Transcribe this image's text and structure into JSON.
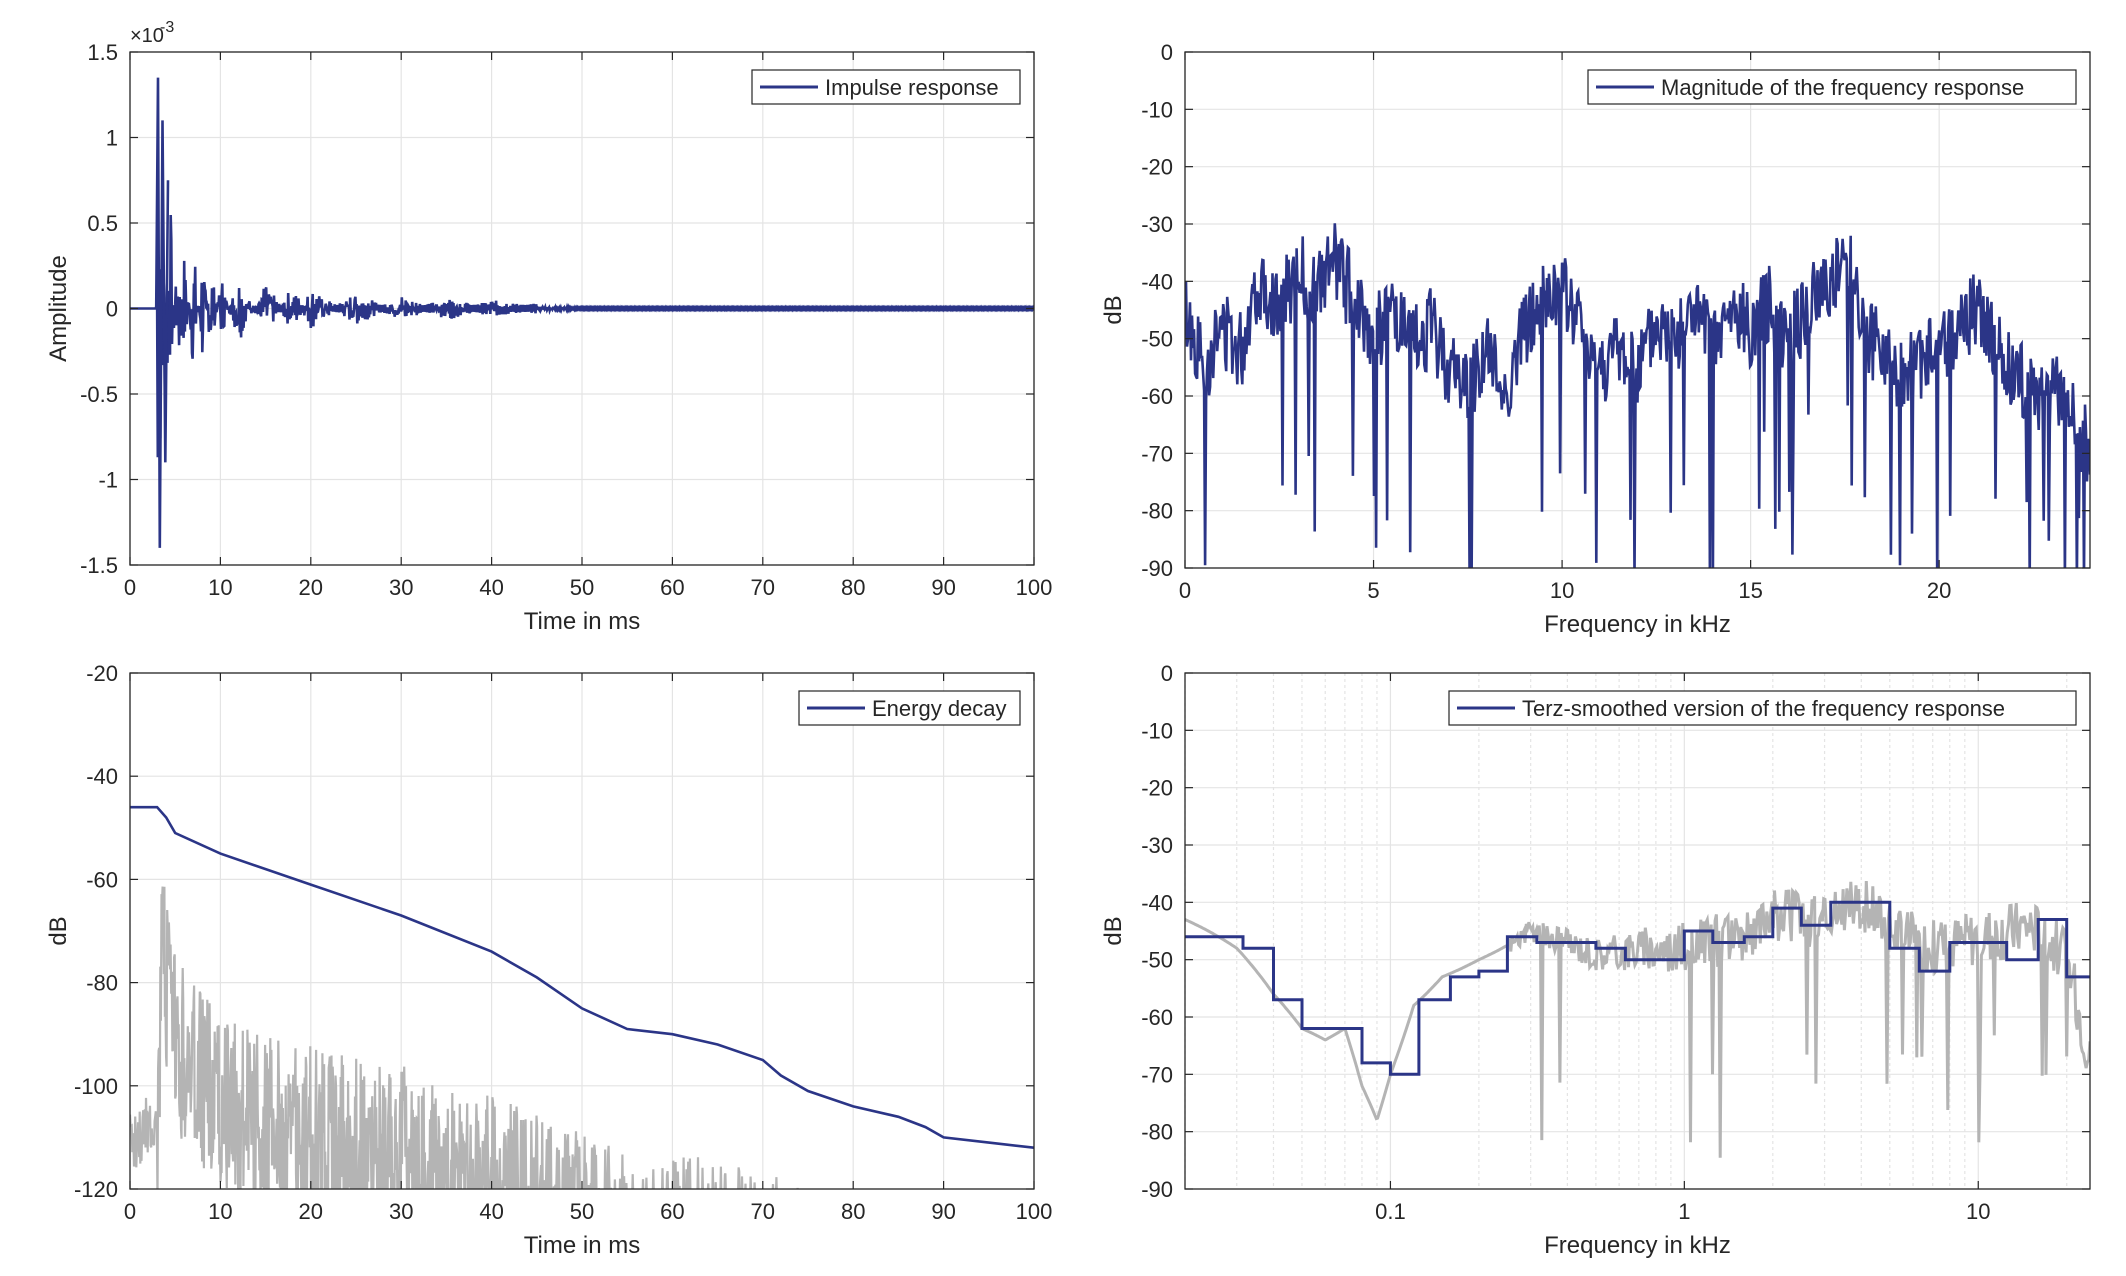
{
  "colors": {
    "series": "#2b3587",
    "gray": "#b4b4b4",
    "grid": "#e4e4e4",
    "axis": "#262626"
  },
  "chart_data": [
    {
      "id": "impulse",
      "type": "line",
      "xlabel": "Time in ms",
      "ylabel": "Amplitude",
      "xlim": [
        0,
        100
      ],
      "ylim": [
        -1.5,
        1.5
      ],
      "xticks": [
        "0",
        "10",
        "20",
        "30",
        "40",
        "50",
        "60",
        "70",
        "80",
        "90",
        "100"
      ],
      "yticks": [
        "-1.5",
        "-1",
        "-0.5",
        "0",
        "0.5",
        "1",
        "1.5"
      ],
      "exponent_label": "×10",
      "exponent_value": "-3",
      "legend": [
        "Impulse response"
      ],
      "legend_position": "top-right",
      "grid": true,
      "series": [
        {
          "name": "Impulse response",
          "x": [
            0,
            2.9,
            3.1,
            3.3,
            3.6,
            3.9,
            4.2,
            4.5,
            5,
            5.5,
            6,
            7,
            8,
            9,
            10,
            12,
            15,
            18,
            20,
            25,
            30,
            35,
            40,
            45,
            50,
            100
          ],
          "y": [
            0,
            0,
            1.35,
            -1.4,
            1.1,
            -0.9,
            0.75,
            -0.6,
            0.45,
            -0.5,
            0.35,
            -0.4,
            0.32,
            -0.3,
            0.2,
            -0.18,
            0.14,
            -0.12,
            0.1,
            -0.08,
            0.06,
            -0.05,
            0.03,
            -0.01,
            0,
            0
          ]
        }
      ]
    },
    {
      "id": "magnitude",
      "type": "line",
      "xlabel": "Frequency in kHz",
      "ylabel": "dB",
      "xlim": [
        0,
        24
      ],
      "ylim": [
        -90,
        0
      ],
      "xticks": [
        "0",
        "5",
        "10",
        "15",
        "20"
      ],
      "yticks": [
        "0",
        "-10",
        "-20",
        "-30",
        "-40",
        "-50",
        "-60",
        "-70",
        "-80",
        "-90"
      ],
      "legend": [
        "Magnitude of the frequency response"
      ],
      "legend_position": "top-right",
      "grid": true,
      "series": [
        {
          "name": "Magnitude of the frequency response",
          "x": [
            0,
            0.5,
            1,
            1.5,
            1.8,
            2,
            2.5,
            3,
            3.5,
            4,
            4.2,
            4.5,
            5,
            5.5,
            6,
            6.5,
            7,
            7.5,
            8,
            8.5,
            9,
            9.5,
            10,
            10.5,
            11,
            11.5,
            12,
            12.5,
            13,
            13.5,
            14,
            14.5,
            15,
            15.5,
            16,
            16.5,
            17,
            17.5,
            17.7,
            18,
            18.5,
            19,
            19.5,
            20,
            20.5,
            21,
            21.5,
            22,
            22.5,
            23,
            23.5,
            24
          ],
          "y": [
            -45,
            -55,
            -48,
            -52,
            -42,
            -40,
            -45,
            -38,
            -42,
            -36,
            -40,
            -42,
            -50,
            -45,
            -52,
            -48,
            -55,
            -58,
            -52,
            -60,
            -48,
            -44,
            -42,
            -48,
            -55,
            -52,
            -56,
            -48,
            -50,
            -45,
            -52,
            -46,
            -48,
            -44,
            -50,
            -45,
            -40,
            -38,
            -36,
            -50,
            -52,
            -56,
            -54,
            -52,
            -50,
            -44,
            -52,
            -56,
            -60,
            -58,
            -64,
            -70
          ]
        }
      ]
    },
    {
      "id": "decay",
      "type": "line",
      "xlabel": "Time in ms",
      "ylabel": "dB",
      "xlim": [
        0,
        100
      ],
      "ylim": [
        -120,
        -20
      ],
      "xticks": [
        "0",
        "10",
        "20",
        "30",
        "40",
        "50",
        "60",
        "70",
        "80",
        "90",
        "100"
      ],
      "yticks": [
        "-20",
        "-40",
        "-60",
        "-80",
        "-100",
        "-120"
      ],
      "legend": [
        "Energy decay"
      ],
      "legend_position": "top-right",
      "grid": true,
      "series": [
        {
          "name": "Energy decay",
          "x": [
            0,
            3,
            4,
            5,
            10,
            20,
            30,
            40,
            45,
            50,
            55,
            60,
            65,
            70,
            72,
            75,
            80,
            85,
            88,
            90,
            95,
            100
          ],
          "y": [
            -46,
            -46,
            -48,
            -51,
            -55,
            -61,
            -67,
            -74,
            -79,
            -85,
            -89,
            -90,
            -92,
            -95,
            -98,
            -101,
            -104,
            -106,
            -108,
            -110,
            -111,
            -112
          ]
        },
        {
          "name": "",
          "x": [
            0,
            3,
            3.5,
            5,
            10,
            20,
            30,
            40,
            50,
            55,
            58,
            60,
            70,
            76
          ],
          "y": [
            -105,
            -100,
            -58,
            -75,
            -86,
            -92,
            -96,
            -102,
            -109,
            -113,
            -116,
            -113,
            -116,
            -120
          ]
        }
      ]
    },
    {
      "id": "terz",
      "type": "line",
      "xlabel": "Frequency in kHz",
      "ylabel": "dB",
      "xscale": "log",
      "xlim": [
        0.02,
        24
      ],
      "ylim": [
        -90,
        0
      ],
      "xticks": [
        "0.1",
        "1",
        "10"
      ],
      "yticks": [
        "0",
        "-10",
        "-20",
        "-30",
        "-40",
        "-50",
        "-60",
        "-70",
        "-80",
        "-90"
      ],
      "legend": [
        "Terz-smoothed version of the frequency response"
      ],
      "legend_position": "top-right",
      "grid": true,
      "series": [
        {
          "name": "Terz-smoothed version of the frequency response",
          "x": [
            0.02,
            0.025,
            0.0315,
            0.04,
            0.05,
            0.063,
            0.08,
            0.1,
            0.125,
            0.16,
            0.2,
            0.25,
            0.315,
            0.4,
            0.5,
            0.63,
            0.8,
            1,
            1.25,
            1.6,
            2,
            2.5,
            3.15,
            4,
            5,
            6.3,
            8,
            10,
            12.5,
            16,
            20,
            24
          ],
          "y": [
            -46,
            -46,
            -48,
            -57,
            -62,
            -62,
            -68,
            -70,
            -57,
            -53,
            -52,
            -46,
            -47,
            -47,
            -48,
            -50,
            -50,
            -45,
            -47,
            -46,
            -41,
            -44,
            -40,
            -40,
            -48,
            -52,
            -47,
            -47,
            -50,
            -43,
            -53,
            -53
          ]
        },
        {
          "name": "",
          "x": [
            0.02,
            0.03,
            0.04,
            0.05,
            0.06,
            0.07,
            0.08,
            0.09,
            0.1,
            0.12,
            0.15,
            0.2,
            0.3,
            0.4,
            0.5,
            0.7,
            1,
            1.5,
            2,
            3,
            4,
            5,
            7,
            10,
            15,
            20,
            24
          ],
          "y": [
            -43,
            -48,
            -56,
            -62,
            -64,
            -62,
            -72,
            -78,
            -70,
            -58,
            -53,
            -50,
            -45,
            -47,
            -49,
            -48,
            -48,
            -46,
            -42,
            -44,
            -40,
            -45,
            -48,
            -46,
            -44,
            -50,
            -68
          ]
        }
      ]
    }
  ]
}
